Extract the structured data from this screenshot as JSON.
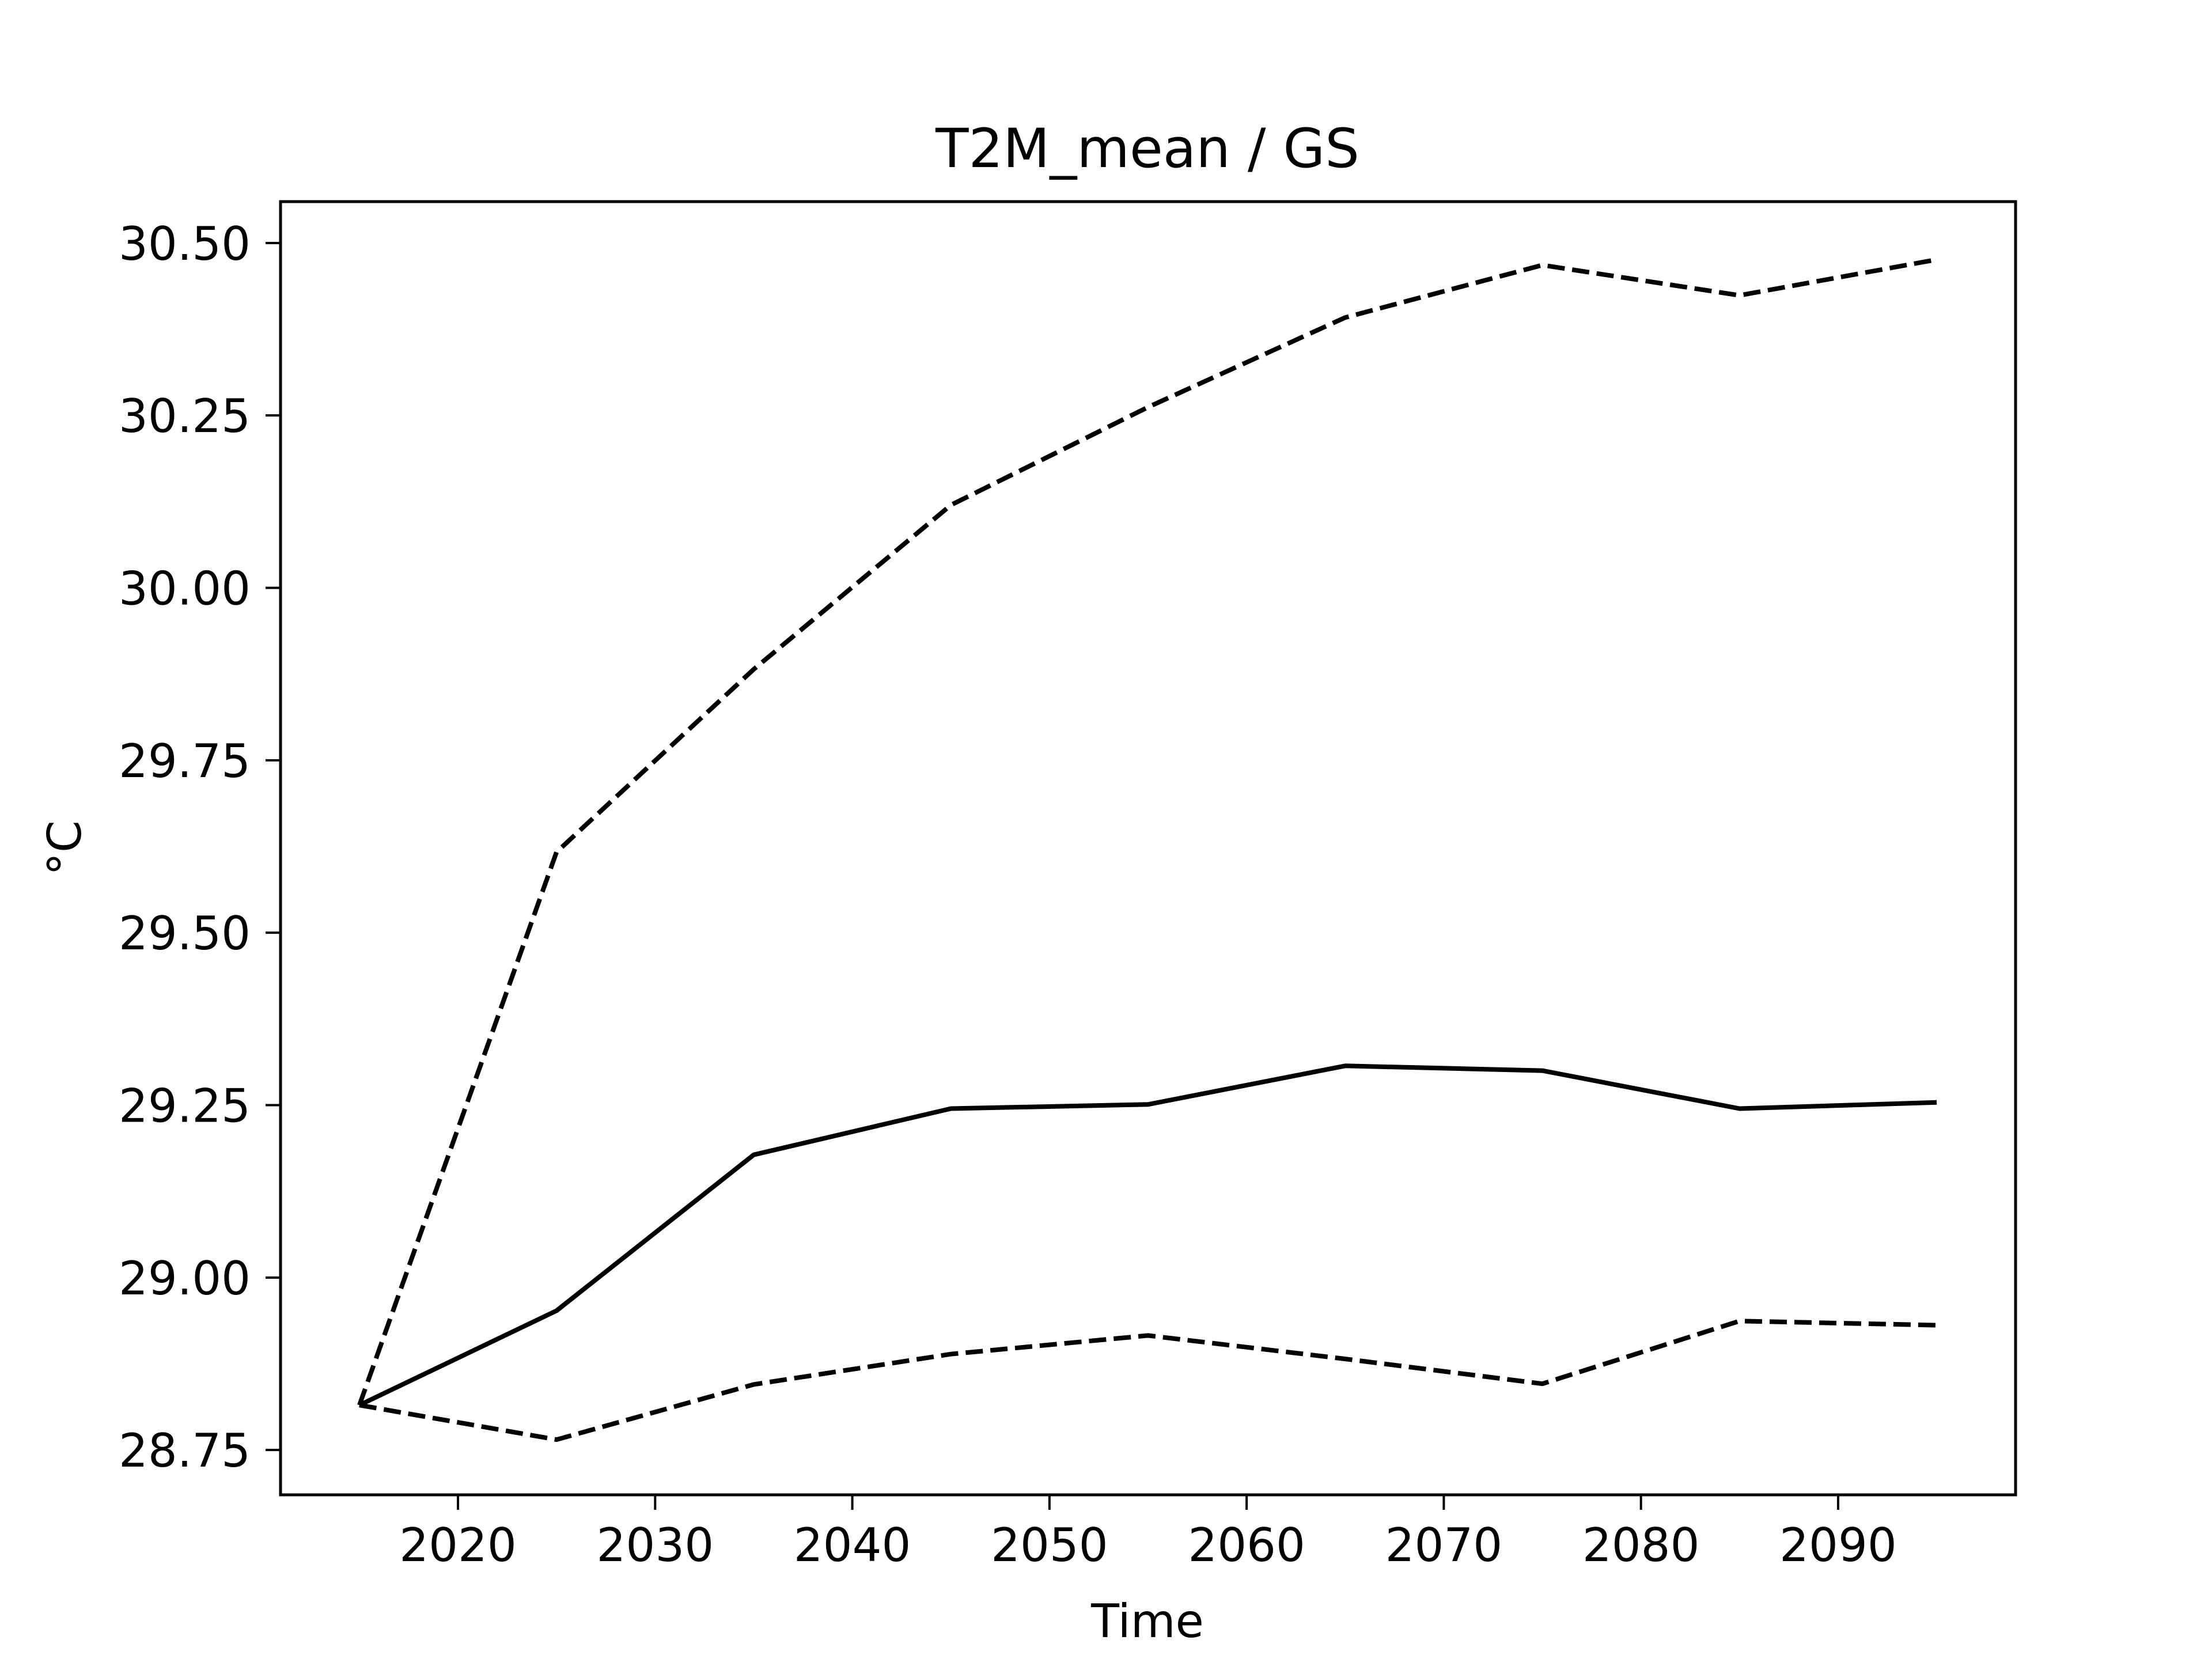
{
  "chart_data": {
    "type": "line",
    "title": "T2M_mean / GS",
    "xlabel": "Time",
    "ylabel": "°C",
    "xlim": [
      2011,
      2099
    ],
    "ylim": [
      28.685,
      30.56
    ],
    "x_ticks": [
      2020,
      2030,
      2040,
      2050,
      2060,
      2070,
      2080,
      2090
    ],
    "y_ticks": [
      28.75,
      29.0,
      29.25,
      29.5,
      29.75,
      30.0,
      30.25,
      30.5
    ],
    "grid": false,
    "legend": "none",
    "x": [
      2015,
      2025,
      2035,
      2045,
      2055,
      2065,
      2075,
      2085,
      2095
    ],
    "series": [
      {
        "style": "solid",
        "color": "#000000",
        "values": [
          28.815,
          28.952,
          29.178,
          29.245,
          29.251,
          29.307,
          29.3,
          29.245,
          29.254
        ]
      },
      {
        "style": "dashed",
        "color": "#000000",
        "values": [
          28.815,
          29.617,
          29.882,
          30.12,
          30.262,
          30.392,
          30.468,
          30.424,
          30.476
        ]
      },
      {
        "style": "dashed",
        "color": "#000000",
        "values": [
          28.815,
          28.765,
          28.845,
          28.889,
          28.916,
          28.882,
          28.846,
          28.937,
          28.931
        ]
      }
    ]
  }
}
